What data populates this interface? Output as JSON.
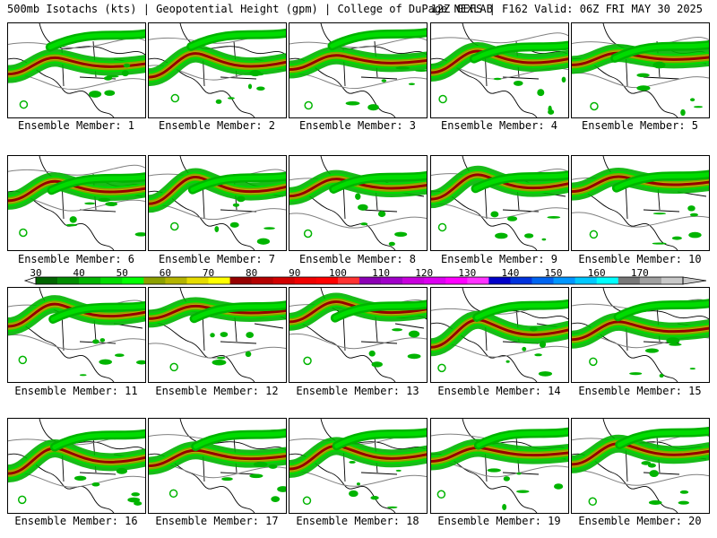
{
  "header": {
    "left": "500mb Isotachs (kts) | Geopotential Height (gpm) | College of DuPage NEXLAB",
    "right": "12Z GEFS | F162 Valid: 06Z FRI MAY 30 2025"
  },
  "members": [
    {
      "label": "Ensemble Member: 1"
    },
    {
      "label": "Ensemble Member: 2"
    },
    {
      "label": "Ensemble Member: 3"
    },
    {
      "label": "Ensemble Member: 4"
    },
    {
      "label": "Ensemble Member: 5"
    },
    {
      "label": "Ensemble Member: 6"
    },
    {
      "label": "Ensemble Member: 7"
    },
    {
      "label": "Ensemble Member: 8"
    },
    {
      "label": "Ensemble Member: 9"
    },
    {
      "label": "Ensemble Member: 10"
    },
    {
      "label": "Ensemble Member: 11"
    },
    {
      "label": "Ensemble Member: 12"
    },
    {
      "label": "Ensemble Member: 13"
    },
    {
      "label": "Ensemble Member: 14"
    },
    {
      "label": "Ensemble Member: 15"
    },
    {
      "label": "Ensemble Member: 16"
    },
    {
      "label": "Ensemble Member: 17"
    },
    {
      "label": "Ensemble Member: 18"
    },
    {
      "label": "Ensemble Member: 19"
    },
    {
      "label": "Ensemble Member: 20"
    }
  ],
  "colorbar": {
    "labels": [
      "30",
      "40",
      "50",
      "60",
      "70",
      "80",
      "90",
      "100",
      "110",
      "120",
      "130",
      "140",
      "150",
      "160",
      "170"
    ],
    "colors": [
      "#006400",
      "#008c00",
      "#00b400",
      "#00dc00",
      "#00ff00",
      "#8ca000",
      "#b4b400",
      "#e6dc00",
      "#ffff00",
      "#960000",
      "#b40000",
      "#d20000",
      "#f00000",
      "#ff0000",
      "#ff3232",
      "#8c00b4",
      "#a000c8",
      "#c800dc",
      "#dc00f0",
      "#ff00ff",
      "#ff32ff",
      "#0000c8",
      "#0032dc",
      "#0064f0",
      "#0096ff",
      "#00c8ff",
      "#00ffff",
      "#787878",
      "#a0a0a0",
      "#c8c8c8"
    ]
  }
}
